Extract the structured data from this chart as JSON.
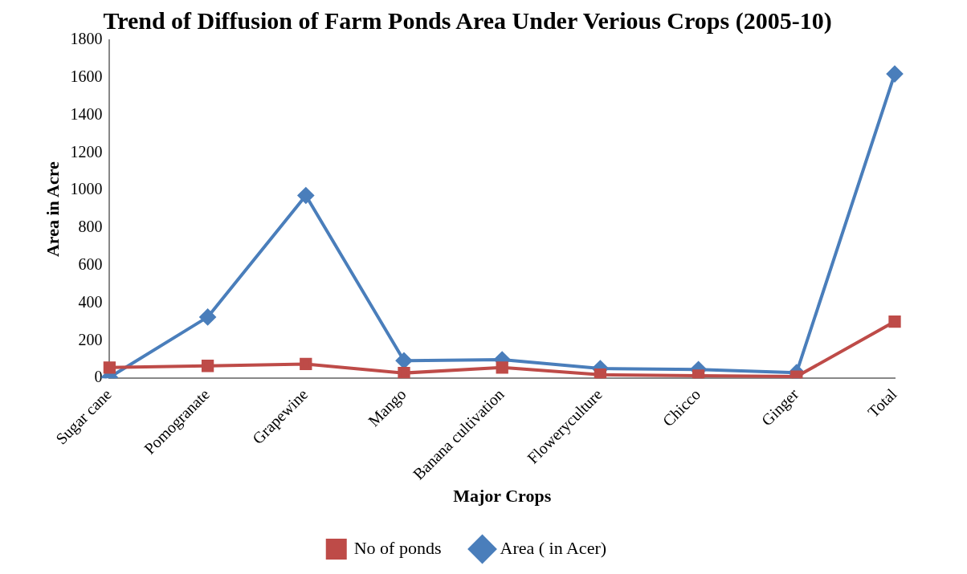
{
  "chart_data": {
    "type": "line",
    "title": "Trend of Diffusion of Farm Ponds Area Under Verious Crops (2005-10)",
    "xlabel": "Major Crops",
    "ylabel": "Area in Acre",
    "categories": [
      "Sugar cane",
      "Pomogranate",
      "Grapewine",
      "Mango",
      "Banana cultivation",
      "Floweryculture",
      "Chicco",
      "Ginger",
      "Total"
    ],
    "series": [
      {
        "name": "Area ( in Acer)",
        "color": "#4a7ebb",
        "marker": "diamond",
        "values": [
          5,
          326,
          973,
          94,
          99,
          52,
          47,
          30,
          1620
        ]
      },
      {
        "name": "No of ponds",
        "color": "#be4b48",
        "marker": "square",
        "values": [
          57,
          66,
          76,
          28,
          57,
          19,
          14,
          9,
          302
        ]
      }
    ],
    "ylim": [
      0,
      1800
    ],
    "yticks": [
      0,
      200,
      400,
      600,
      800,
      1000,
      1200,
      1400,
      1600,
      1800
    ],
    "grid": false,
    "legend": "bottom"
  }
}
